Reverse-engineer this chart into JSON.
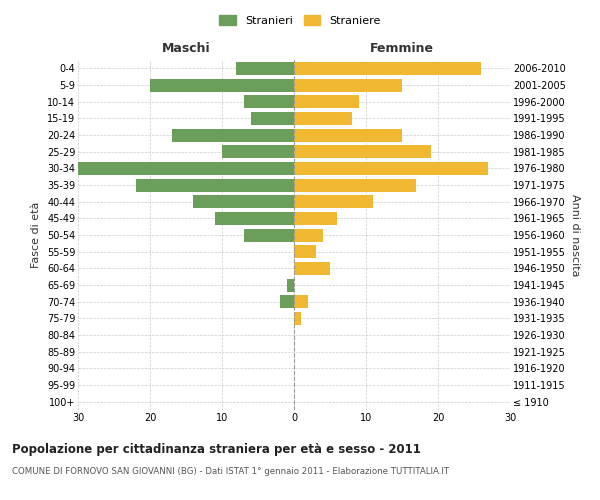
{
  "age_groups": [
    "100+",
    "95-99",
    "90-94",
    "85-89",
    "80-84",
    "75-79",
    "70-74",
    "65-69",
    "60-64",
    "55-59",
    "50-54",
    "45-49",
    "40-44",
    "35-39",
    "30-34",
    "25-29",
    "20-24",
    "15-19",
    "10-14",
    "5-9",
    "0-4"
  ],
  "birth_years": [
    "≤ 1910",
    "1911-1915",
    "1916-1920",
    "1921-1925",
    "1926-1930",
    "1931-1935",
    "1936-1940",
    "1941-1945",
    "1946-1950",
    "1951-1955",
    "1956-1960",
    "1961-1965",
    "1966-1970",
    "1971-1975",
    "1976-1980",
    "1981-1985",
    "1986-1990",
    "1991-1995",
    "1996-2000",
    "2001-2005",
    "2006-2010"
  ],
  "maschi": [
    0,
    0,
    0,
    0,
    0,
    0,
    2,
    1,
    0,
    0,
    7,
    11,
    14,
    22,
    30,
    10,
    17,
    6,
    7,
    20,
    8
  ],
  "femmine": [
    0,
    0,
    0,
    0,
    0,
    1,
    2,
    0,
    5,
    3,
    4,
    6,
    11,
    17,
    27,
    19,
    15,
    8,
    9,
    15,
    26
  ],
  "color_maschi": "#6a9e5a",
  "color_femmine": "#f0b830",
  "title": "Popolazione per cittadinanza straniera per età e sesso - 2011",
  "subtitle": "COMUNE DI FORNOVO SAN GIOVANNI (BG) - Dati ISTAT 1° gennaio 2011 - Elaborazione TUTTITALIA.IT",
  "legend_maschi": "Stranieri",
  "legend_femmine": "Straniere",
  "label_maschi": "Maschi",
  "label_femmine": "Femmine",
  "ylabel_left": "Fasce di età",
  "ylabel_right": "Anni di nascita",
  "xlim": 30,
  "background_color": "#ffffff",
  "grid_color": "#cccccc"
}
